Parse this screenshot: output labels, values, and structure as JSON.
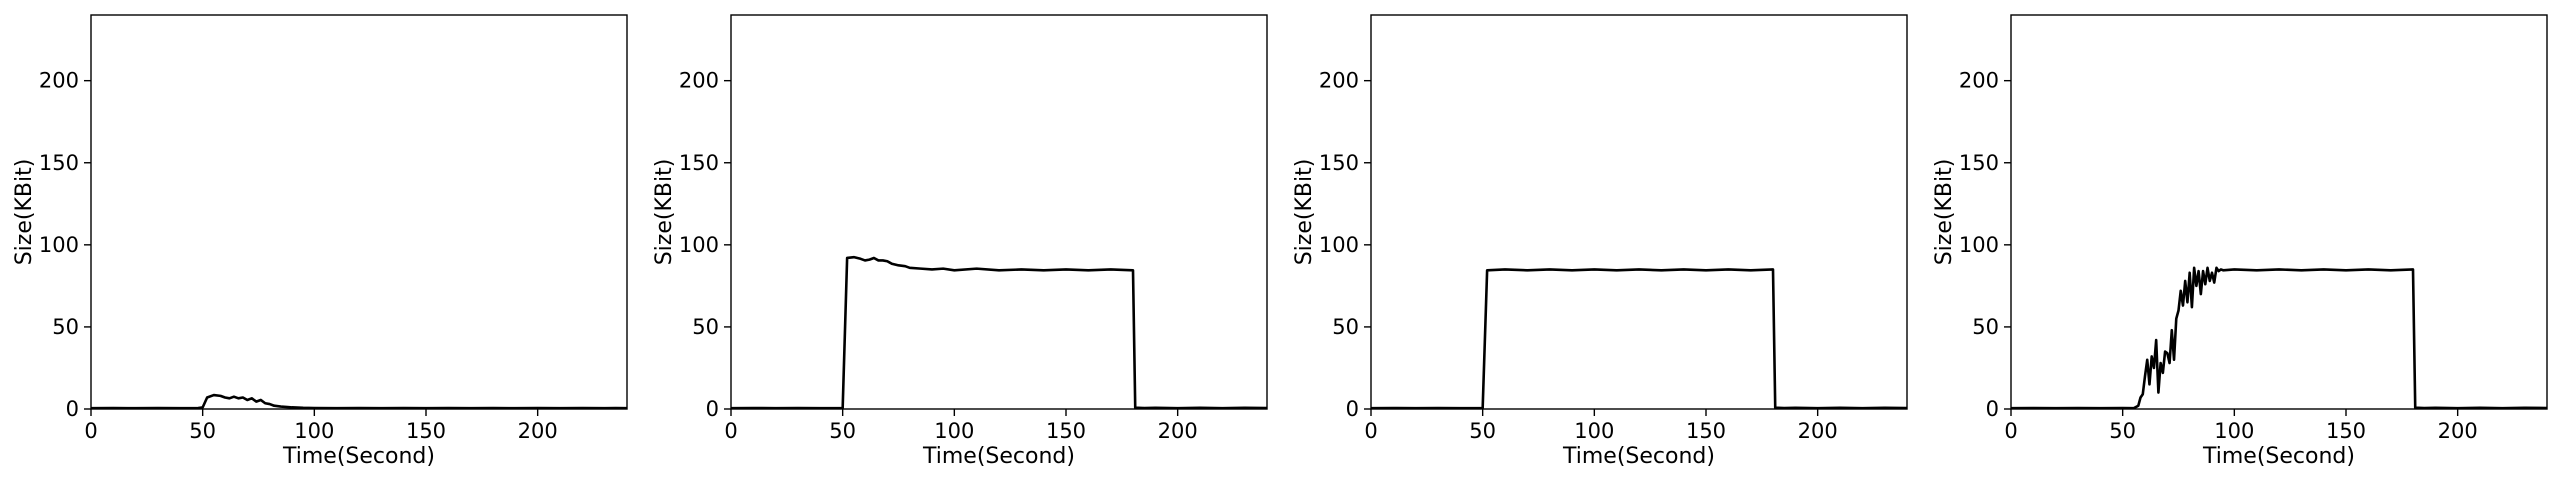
{
  "chart_data": [
    {
      "type": "line",
      "xlabel": "Time(Second)",
      "ylabel": "Size(KBit)",
      "xlim": [
        0,
        240
      ],
      "ylim": [
        0,
        240
      ],
      "xticks": [
        0,
        50,
        100,
        150,
        200
      ],
      "yticks": [
        0,
        50,
        100,
        150,
        200
      ],
      "grid": false,
      "series": [
        {
          "color": "#000000",
          "x": [
            0,
            10,
            20,
            30,
            40,
            48,
            50,
            52,
            55,
            58,
            60,
            62,
            64,
            66,
            68,
            70,
            72,
            74,
            76,
            78,
            80,
            82,
            85,
            88,
            90,
            95,
            100,
            110,
            120,
            130,
            140,
            150,
            160,
            170,
            180,
            190,
            200,
            210,
            220,
            230,
            235,
            240
          ],
          "y": [
            0.5,
            0.6,
            0.5,
            0.6,
            0.5,
            0.6,
            1,
            7,
            8.5,
            8,
            7,
            6.5,
            7.5,
            6.5,
            7,
            5.5,
            6.5,
            4.5,
            5.5,
            3.5,
            3,
            2,
            1.5,
            1.2,
            1,
            0.7,
            0.6,
            0.5,
            0.6,
            0.5,
            0.6,
            0.5,
            0.6,
            0.5,
            0.6,
            0.5,
            0.6,
            0.5,
            0.6,
            0.5,
            0.6,
            0.5
          ]
        }
      ]
    },
    {
      "type": "line",
      "xlabel": "Time(Second)",
      "ylabel": "Size(KBit)",
      "xlim": [
        0,
        240
      ],
      "ylim": [
        0,
        240
      ],
      "xticks": [
        0,
        50,
        100,
        150,
        200
      ],
      "yticks": [
        0,
        50,
        100,
        150,
        200
      ],
      "grid": false,
      "series": [
        {
          "color": "#000000",
          "x": [
            0,
            10,
            20,
            30,
            40,
            50,
            52,
            55,
            58,
            60,
            62,
            64,
            66,
            68,
            70,
            72,
            75,
            78,
            80,
            85,
            90,
            95,
            100,
            110,
            120,
            130,
            140,
            150,
            160,
            170,
            180,
            181,
            185,
            190,
            200,
            210,
            220,
            230,
            240
          ],
          "y": [
            0.5,
            0.6,
            0.5,
            0.6,
            0.5,
            0.6,
            92,
            92.5,
            91.5,
            90.5,
            91,
            92,
            90.5,
            90.5,
            90,
            88.5,
            87.5,
            87,
            86,
            85.5,
            85,
            85.5,
            84.5,
            85.5,
            84.5,
            85,
            84.5,
            85,
            84.5,
            85,
            84.5,
            0.8,
            0.6,
            0.7,
            0.5,
            0.7,
            0.5,
            0.7,
            0.6
          ]
        }
      ]
    },
    {
      "type": "line",
      "xlabel": "Time(Second)",
      "ylabel": "Size(KBit)",
      "xlim": [
        0,
        240
      ],
      "ylim": [
        0,
        240
      ],
      "xticks": [
        0,
        50,
        100,
        150,
        200
      ],
      "yticks": [
        0,
        50,
        100,
        150,
        200
      ],
      "grid": false,
      "series": [
        {
          "color": "#000000",
          "x": [
            0,
            10,
            20,
            30,
            40,
            50,
            52,
            60,
            70,
            80,
            90,
            100,
            110,
            120,
            130,
            140,
            150,
            160,
            170,
            180,
            181,
            185,
            190,
            200,
            210,
            220,
            230,
            240
          ],
          "y": [
            0.5,
            0.6,
            0.5,
            0.6,
            0.5,
            0.6,
            84.5,
            85,
            84.5,
            85,
            84.5,
            85,
            84.5,
            85,
            84.5,
            85,
            84.5,
            85,
            84.5,
            85,
            0.8,
            0.6,
            0.7,
            0.5,
            0.7,
            0.5,
            0.7,
            0.6
          ]
        }
      ]
    },
    {
      "type": "line",
      "xlabel": "Time(Second)",
      "ylabel": "Size(KBit)",
      "xlim": [
        0,
        240
      ],
      "ylim": [
        0,
        240
      ],
      "xticks": [
        0,
        50,
        100,
        150,
        200
      ],
      "yticks": [
        0,
        50,
        100,
        150,
        200
      ],
      "grid": false,
      "series": [
        {
          "color": "#000000",
          "x": [
            0,
            10,
            20,
            30,
            40,
            50,
            55,
            57,
            58,
            59,
            60,
            61,
            62,
            63,
            64,
            65,
            66,
            67,
            68,
            69,
            70,
            71,
            72,
            73,
            74,
            75,
            76,
            77,
            78,
            79,
            80,
            81,
            82,
            83,
            84,
            85,
            86,
            87,
            88,
            89,
            90,
            91,
            92,
            93,
            94,
            95,
            100,
            110,
            120,
            130,
            140,
            150,
            160,
            170,
            180,
            181,
            185,
            190,
            200,
            210,
            220,
            230,
            240
          ],
          "y": [
            0.5,
            0.6,
            0.5,
            0.6,
            0.5,
            0.6,
            0.5,
            2,
            7,
            9,
            20,
            30,
            15,
            32,
            25,
            42,
            10,
            28,
            22,
            35,
            34,
            28,
            48,
            30,
            55,
            60,
            72,
            63,
            78,
            65,
            83,
            62,
            86,
            75,
            84,
            70,
            84,
            76,
            86,
            78,
            83,
            77,
            86,
            84,
            85,
            84.5,
            85,
            84.5,
            85,
            84.5,
            85,
            84.5,
            85,
            84.5,
            85,
            0.8,
            0.6,
            0.7,
            0.5,
            0.7,
            0.5,
            0.7,
            0.6
          ]
        }
      ]
    }
  ]
}
